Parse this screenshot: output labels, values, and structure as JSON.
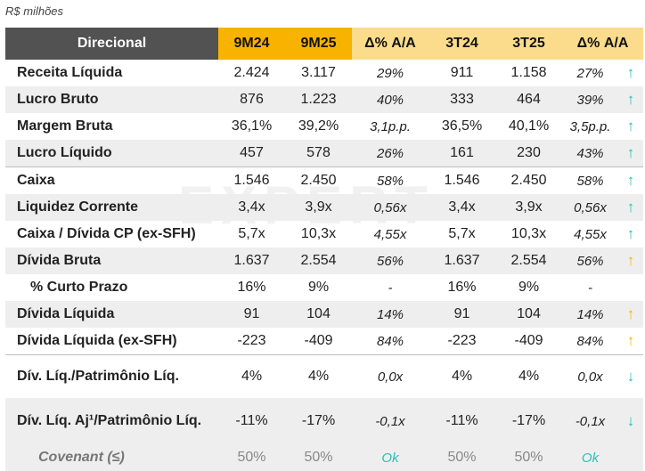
{
  "unit_label": "R$ milhões",
  "watermark": "EXPERT",
  "header": {
    "title": "Direcional",
    "cols": [
      "9M24",
      "9M25",
      "Δ% A/A",
      "3T24",
      "3T25",
      "Δ% A/A"
    ]
  },
  "colors": {
    "dark_header": "#f8b300",
    "light_header": "#fbdc8c",
    "title_header": "#525252",
    "teal": "#22c3b2",
    "amber": "#f8b300"
  },
  "rows": [
    {
      "label": "Receita Líquida",
      "v": [
        "2.424",
        "3.117",
        "29%",
        "911",
        "1.158",
        "27%"
      ],
      "arrow": "↑",
      "arrow_icon": "arrow-up-teal"
    },
    {
      "label": "Lucro Bruto",
      "v": [
        "876",
        "1.223",
        "40%",
        "333",
        "464",
        "39%"
      ],
      "arrow": "↑",
      "arrow_icon": "arrow-up-teal"
    },
    {
      "label": "Margem Bruta",
      "v": [
        "36,1%",
        "39,2%",
        "3,1p.p.",
        "36,5%",
        "40,1%",
        "3,5p.p."
      ],
      "arrow": "↑",
      "arrow_icon": "arrow-up-teal"
    },
    {
      "label": "Lucro Líquido",
      "v": [
        "457",
        "578",
        "26%",
        "161",
        "230",
        "43%"
      ],
      "arrow": "↑",
      "arrow_icon": "arrow-up-teal"
    },
    {
      "label": "Caixa",
      "v": [
        "1.546",
        "2.450",
        "58%",
        "1.546",
        "2.450",
        "58%"
      ],
      "arrow": "↑",
      "arrow_icon": "arrow-up-teal"
    },
    {
      "label": "Liquidez Corrente",
      "v": [
        "3,4x",
        "3,9x",
        "0,56x",
        "3,4x",
        "3,9x",
        "0,56x"
      ],
      "arrow": "↑",
      "arrow_icon": "arrow-up-teal"
    },
    {
      "label": "Caixa / Dívida CP (ex-SFH)",
      "v": [
        "5,7x",
        "10,3x",
        "4,55x",
        "5,7x",
        "10,3x",
        "4,55x"
      ],
      "arrow": "↑",
      "arrow_icon": "arrow-up-teal"
    },
    {
      "label": "Dívida Bruta",
      "v": [
        "1.637",
        "2.554",
        "56%",
        "1.637",
        "2.554",
        "56%"
      ],
      "arrow": "↑",
      "arrow_icon": "arrow-up-amber"
    },
    {
      "label": "% Curto Prazo",
      "v": [
        "16%",
        "9%",
        "-",
        "16%",
        "9%",
        "-"
      ],
      "arrow": "",
      "arrow_icon": ""
    },
    {
      "label": "Dívida Líquida",
      "v": [
        "91",
        "104",
        "14%",
        "91",
        "104",
        "14%"
      ],
      "arrow": "↑",
      "arrow_icon": "arrow-up-amber"
    },
    {
      "label": "Dívida Líquida (ex-SFH)",
      "v": [
        "-223",
        "-409",
        "84%",
        "-223",
        "-409",
        "84%"
      ],
      "arrow": "↑",
      "arrow_icon": "arrow-up-amber"
    },
    {
      "label": "Dív. Líq./Patrimônio Líq.",
      "v": [
        "4%",
        "4%",
        "0,0x",
        "4%",
        "4%",
        "0,0x"
      ],
      "arrow": "↓",
      "arrow_icon": "arrow-down-teal"
    },
    {
      "label": "Dív. Líq. Aj¹/Patrimônio Líq.",
      "v": [
        "-11%",
        "-17%",
        "-0,1x",
        "-11%",
        "-17%",
        "-0,1x"
      ],
      "arrow": "↓",
      "arrow_icon": "arrow-down-teal"
    },
    {
      "label": "Covenant (≤)",
      "v": [
        "50%",
        "50%",
        "Ok",
        "50%",
        "50%",
        "Ok"
      ],
      "arrow": "",
      "arrow_icon": ""
    }
  ]
}
